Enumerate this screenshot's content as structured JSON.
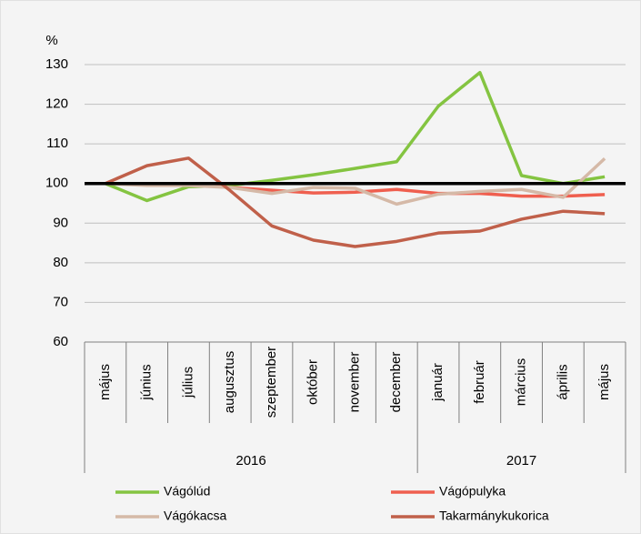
{
  "chart_data": {
    "type": "line",
    "y_axis_label": "%",
    "categories": [
      "május",
      "június",
      "július",
      "augusztus",
      "szeptember",
      "október",
      "november",
      "december",
      "január",
      "február",
      "március",
      "április",
      "május"
    ],
    "year_groups": [
      {
        "name": "2016",
        "count": 8
      },
      {
        "name": "2017",
        "count": 5
      }
    ],
    "series": [
      {
        "name": "Vágólúd",
        "color": "#84c441",
        "values": [
          100,
          95.7,
          99.2,
          99.5,
          100.8,
          102.2,
          103.8,
          105.5,
          119.5,
          128,
          102,
          100,
          101.7
        ]
      },
      {
        "name": "Vágópulyka",
        "color": "#ef5f4f",
        "values": [
          100,
          100,
          99.8,
          99,
          98.3,
          97.6,
          97.8,
          98.5,
          97.5,
          97.5,
          96.8,
          96.8,
          97.2
        ]
      },
      {
        "name": "Vágókacsa",
        "color": "#d5b9a7",
        "values": [
          100,
          99.5,
          99.5,
          99,
          97.5,
          99,
          98.8,
          94.8,
          97.3,
          98,
          98.5,
          96.5,
          106.3
        ]
      },
      {
        "name": "Takarmánykukorica",
        "color": "#c0604a",
        "values": [
          100,
          104.5,
          106.4,
          98.2,
          89.3,
          85.7,
          84.1,
          85.4,
          87.5,
          88,
          91,
          93,
          92.4
        ]
      }
    ],
    "reference_line": 100,
    "ylim": [
      60,
      130
    ],
    "yticks": [
      60,
      70,
      80,
      90,
      100,
      110,
      120,
      130
    ],
    "grid": true
  }
}
